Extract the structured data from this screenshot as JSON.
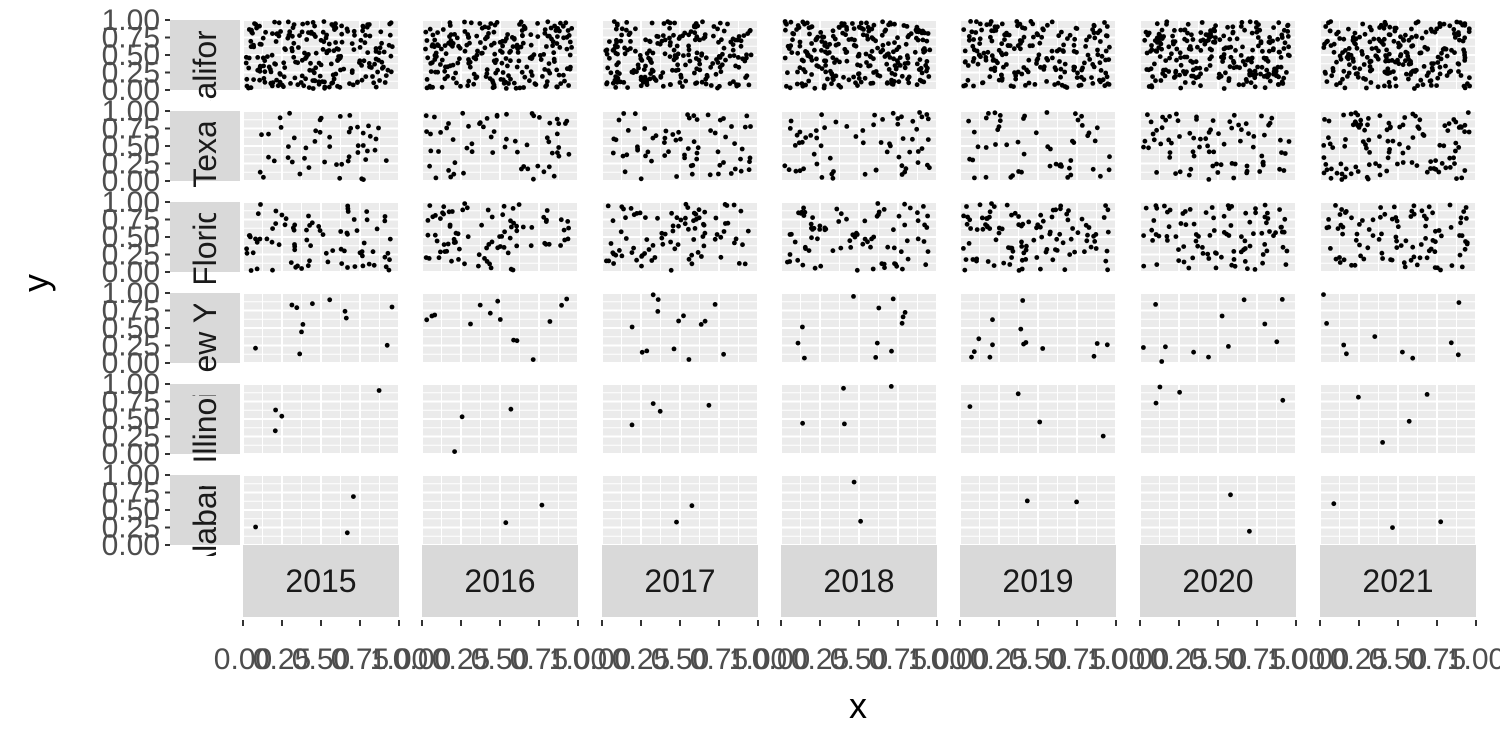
{
  "chart_data": {
    "type": "scatter",
    "xlabel": "x",
    "ylabel": "y",
    "xlim": [
      0,
      1
    ],
    "ylim": [
      0,
      1
    ],
    "x_tick_labels": [
      "0.00",
      "0.25",
      "0.50",
      "0.75",
      "1.00"
    ],
    "y_tick_labels": [
      "0.00",
      "0.25",
      "0.50",
      "0.75",
      "1.00"
    ],
    "panel_background": "#ebebeb",
    "grid_color": "#ffffff",
    "strip_color": "#d9d9d9",
    "point_color": "#000000",
    "years": [
      "2015",
      "2016",
      "2017",
      "2018",
      "2019",
      "2020",
      "2021"
    ],
    "states": [
      {
        "label": "California",
        "points_per_panel": [
          230,
          236,
          225,
          254,
          203,
          251,
          236
        ]
      },
      {
        "label": "Texas",
        "points_per_panel": [
          49,
          61,
          68,
          65,
          52,
          79,
          111
        ]
      },
      {
        "label": "Florida",
        "points_per_panel": [
          79,
          86,
          90,
          84,
          108,
          95,
          97
        ]
      },
      {
        "label": "New York",
        "points_per_panel": [
          12,
          14,
          14,
          12,
          14,
          12,
          10
        ]
      },
      {
        "label": "Illinois",
        "points_per_panel": [
          4,
          3,
          4,
          4,
          4,
          4,
          4
        ]
      },
      {
        "label": "Alabama",
        "points_per_panel": [
          3,
          2,
          2,
          2,
          2,
          2,
          3
        ]
      }
    ]
  }
}
